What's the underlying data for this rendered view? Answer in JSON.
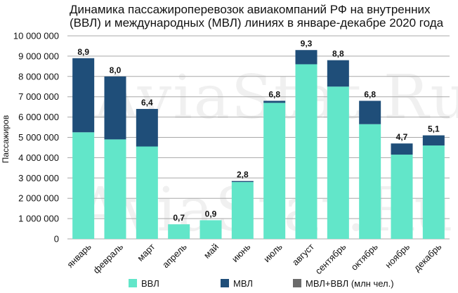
{
  "chart_data": {
    "type": "bar",
    "stacked": true,
    "title": "Динамика пассажироперевозок авиакомпаний РФ на внутренних (ВВЛ) и международных (МВЛ) линиях в январе-декабре 2020 года",
    "title_lines": [
      "Динамика пассажироперевозок авиакомпаний РФ на внутренних",
      "(ВВЛ) и международных (МВЛ) линиях в январе-декабре 2020 года"
    ],
    "ylabel": "Пассажиров",
    "xlabel": "",
    "ylim": [
      0,
      10000000
    ],
    "yticks": [
      0,
      1000000,
      2000000,
      3000000,
      4000000,
      5000000,
      6000000,
      7000000,
      8000000,
      9000000,
      10000000
    ],
    "ytick_labels": [
      "0",
      "1 000 000",
      "2 000 000",
      "3 000 000",
      "4 000 000",
      "5 000 000",
      "6 000 000",
      "7 000 000",
      "8 000 000",
      "9 000 000",
      "10 000 000"
    ],
    "grid": true,
    "legend_position": "bottom",
    "categories": [
      "январь",
      "февраль",
      "март",
      "апрель",
      "май",
      "июнь",
      "июль",
      "август",
      "сентябрь",
      "октябрь",
      "ноябрь",
      "декабрь"
    ],
    "series": [
      {
        "name": "ВВЛ",
        "color": "#62e6c9",
        "values": [
          5250000,
          4900000,
          4550000,
          720000,
          920000,
          2800000,
          6700000,
          8600000,
          7500000,
          5650000,
          4150000,
          4600000
        ]
      },
      {
        "name": "МВЛ",
        "color": "#1f4e79",
        "values": [
          3650000,
          3100000,
          1850000,
          0,
          0,
          50000,
          100000,
          700000,
          1300000,
          1150000,
          550000,
          500000
        ]
      },
      {
        "name": "МВЛ+ВВЛ (млн чел.)",
        "color": "#6b6b6b",
        "values": [
          8.9,
          8.0,
          6.4,
          0.7,
          0.9,
          2.8,
          6.8,
          9.3,
          8.8,
          6.8,
          4.7,
          5.1
        ]
      }
    ],
    "data_labels": [
      "8,9",
      "8,0",
      "6,4",
      "0,7",
      "0,9",
      "2,8",
      "6,8",
      "9,3",
      "8,8",
      "6,8",
      "4,7",
      "5,1"
    ],
    "watermark": "AviaStat.Ru"
  }
}
